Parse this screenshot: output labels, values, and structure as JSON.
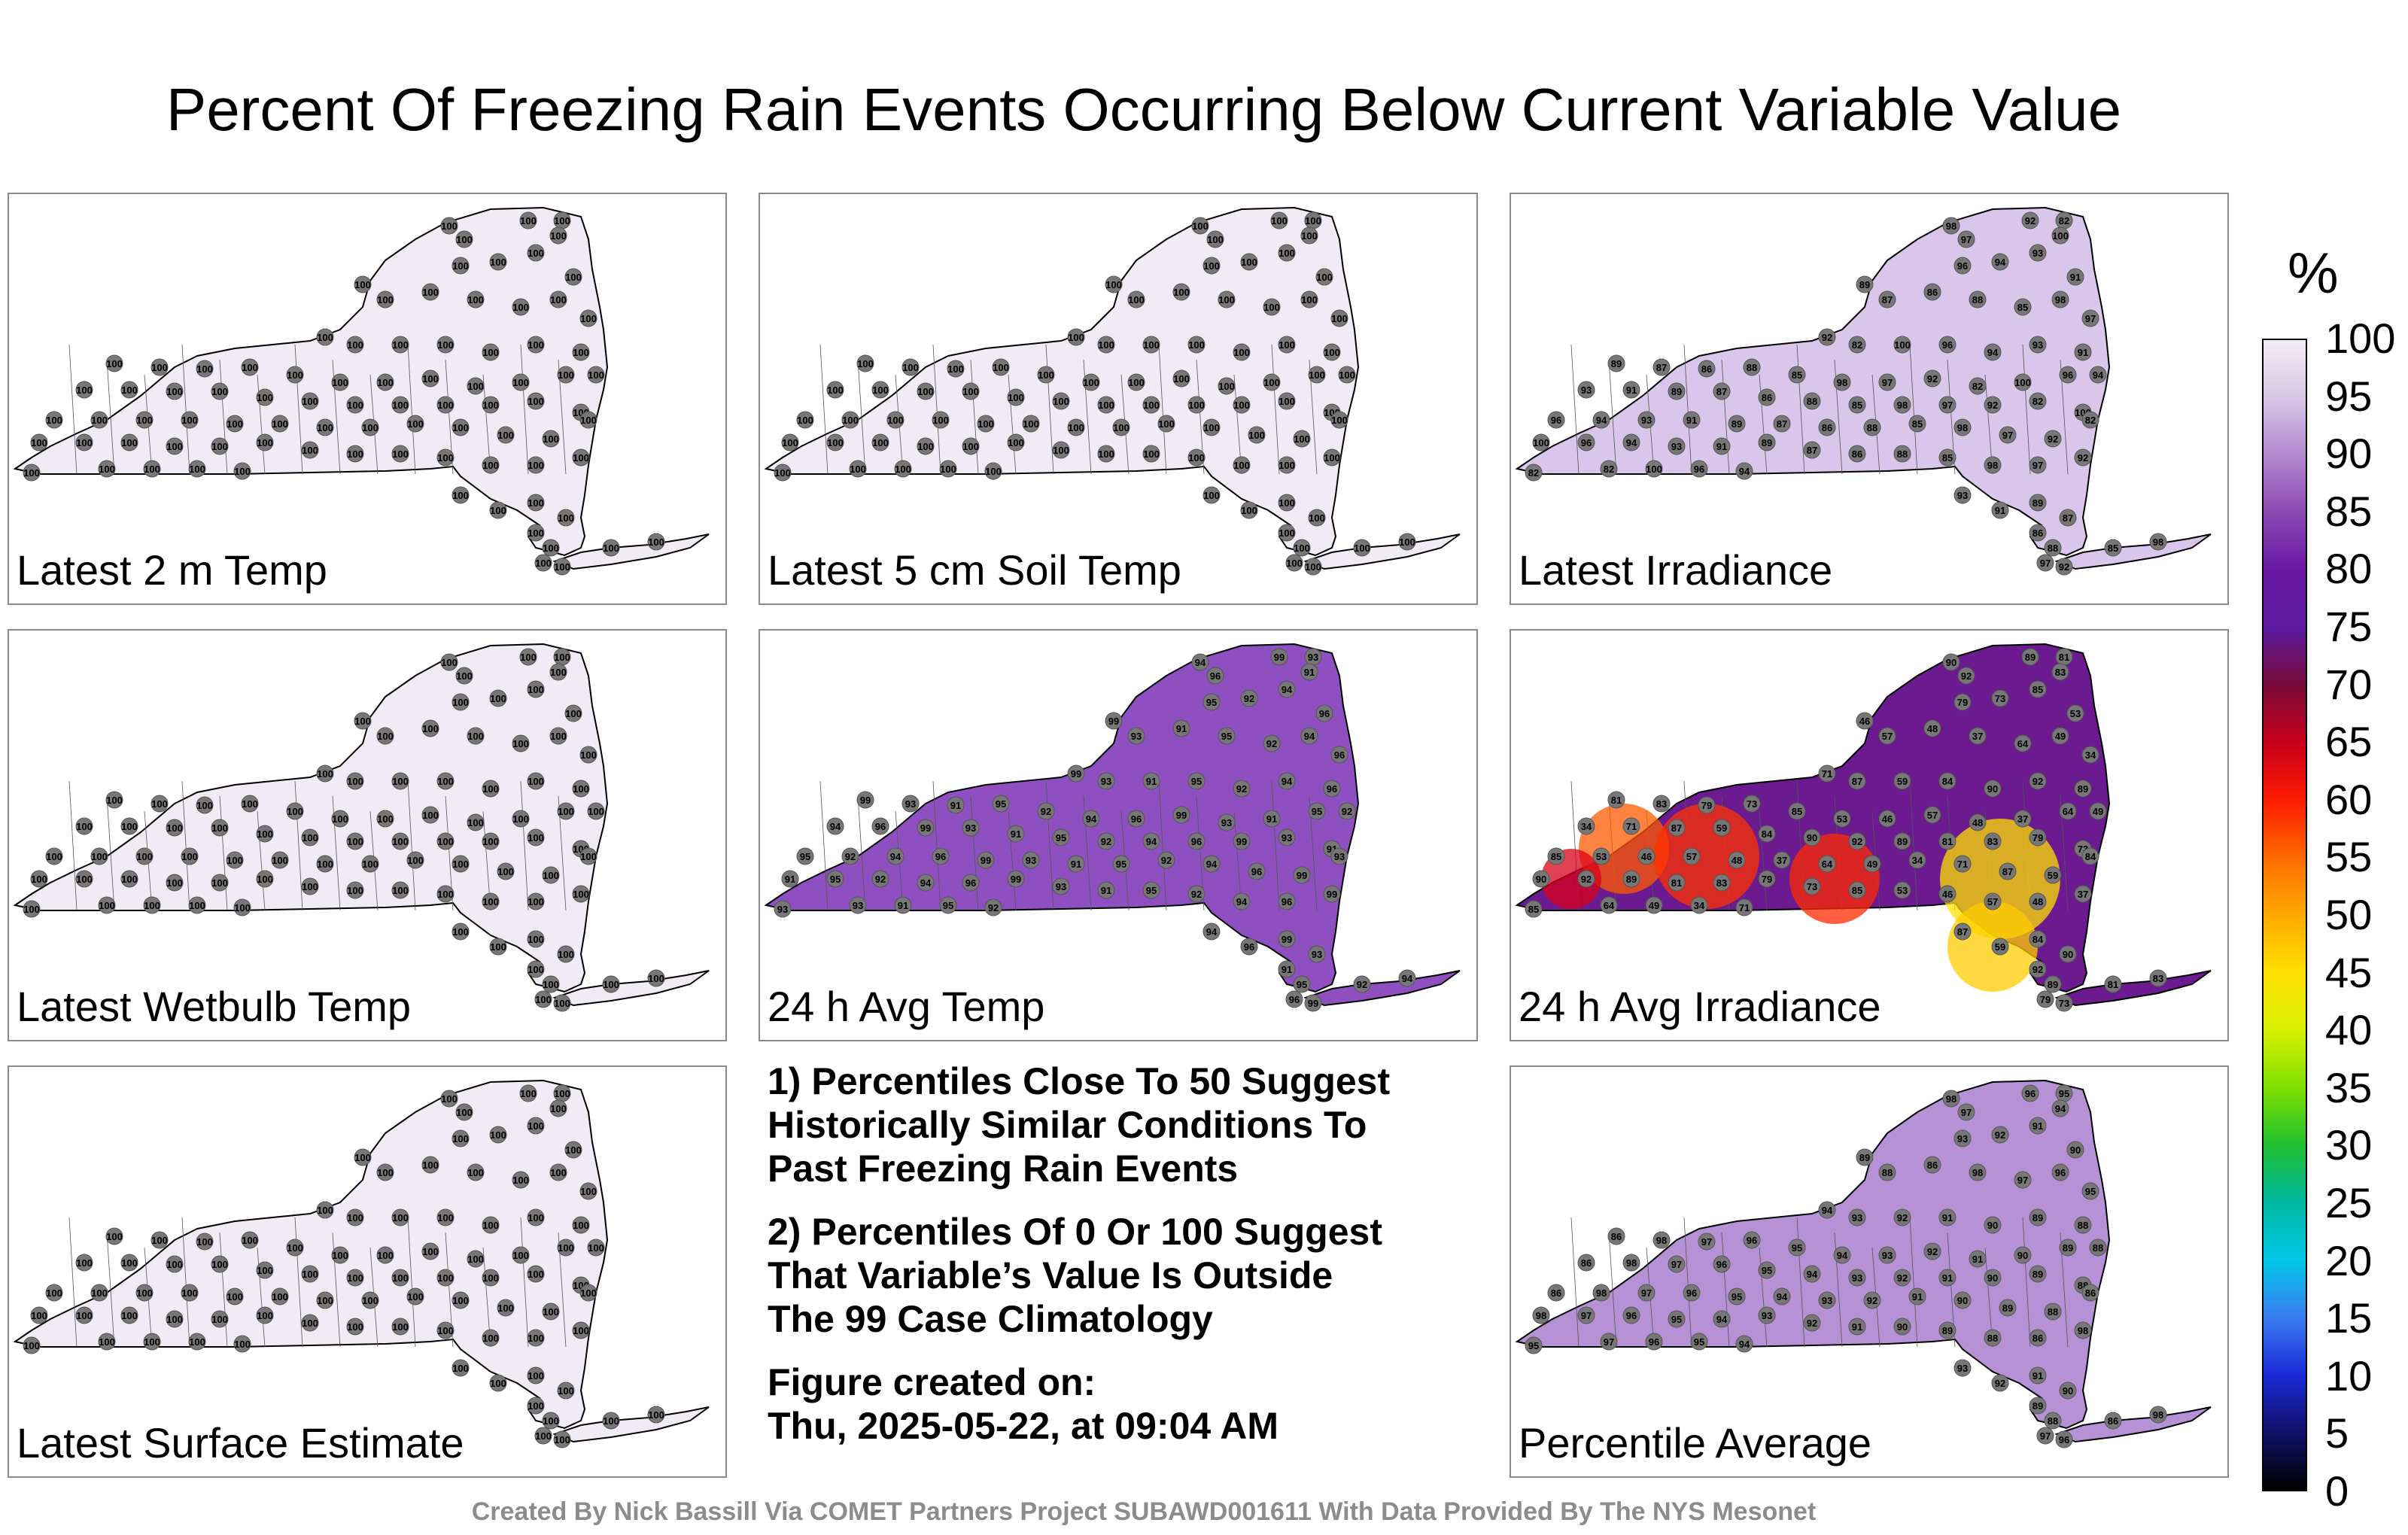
{
  "title": "Percent Of Freezing Rain Events Occurring Below Current Variable Value",
  "colorbar": {
    "unit": "%",
    "ticks": [
      "100",
      "95",
      "90",
      "85",
      "80",
      "75",
      "70",
      "65",
      "60",
      "55",
      "50",
      "45",
      "40",
      "35",
      "30",
      "25",
      "20",
      "15",
      "10",
      "5",
      "0"
    ],
    "colors": [
      "#f2ecf5",
      "#d8c6e6",
      "#b388cf",
      "#8a4ab2",
      "#6a17a5",
      "#5a1aa0",
      "#7a0a3a",
      "#c8001a",
      "#ff1a00",
      "#ff6a00",
      "#ffaa00",
      "#ffe000",
      "#d8f000",
      "#7fe000",
      "#20c030",
      "#00b8a0",
      "#00c8e8",
      "#3a7cf0",
      "#1a2ad8",
      "#10106a",
      "#000000"
    ]
  },
  "panels": [
    {
      "label": "Latest 2 m Temp",
      "fill": "#f1ebf5",
      "values": [
        "100"
      ]
    },
    {
      "label": "Latest 5 cm Soil Temp",
      "fill": "#f1ebf5",
      "values": [
        "100"
      ]
    },
    {
      "label": "Latest Irradiance",
      "fill": "#d9c6ea",
      "values": [
        "98",
        "97",
        "92",
        "82",
        "100",
        "96",
        "94",
        "93",
        "91",
        "89",
        "87",
        "86",
        "88",
        "85"
      ]
    },
    {
      "label": "Latest Wetbulb Temp",
      "fill": "#f1ebf5",
      "values": [
        "100"
      ]
    },
    {
      "label": "24 h Avg Temp",
      "fill": "#8e4fc0",
      "values": [
        "94",
        "96",
        "99",
        "93",
        "91",
        "95",
        "92"
      ]
    },
    {
      "label": "24 h Avg Irradiance",
      "fill": "#6b1a8f",
      "values": [
        "90",
        "92",
        "89",
        "81",
        "83",
        "79",
        "73",
        "85",
        "53",
        "46",
        "57",
        "48",
        "37",
        "64",
        "49",
        "34",
        "71",
        "87",
        "59",
        "84"
      ]
    },
    {
      "label": "Latest Surface Estimate",
      "fill": "#f1ebf5",
      "values": [
        "100"
      ]
    },
    {
      "label": "Percentile Average",
      "fill": "#b691d6",
      "values": [
        "98",
        "97",
        "96",
        "95",
        "94",
        "93",
        "92",
        "91",
        "90",
        "89",
        "88",
        "86"
      ]
    }
  ],
  "notes": {
    "line1a": "1) Percentiles Close To 50 Suggest",
    "line1b": "Historically Similar Conditions To",
    "line1c": "Past Freezing Rain Events",
    "line2a": "2) Percentiles Of 0 Or 100 Suggest",
    "line2b": "That Variable’s Value Is Outside",
    "line2c": "The 99 Case Climatology",
    "line3a": "Figure created on:",
    "line3b": "Thu, 2025-05-22, at 09:04 AM"
  },
  "footer": "Created By Nick Bassill Via COMET Partners Project SUBAWD001611 With Data Provided By The NYS Mesonet"
}
